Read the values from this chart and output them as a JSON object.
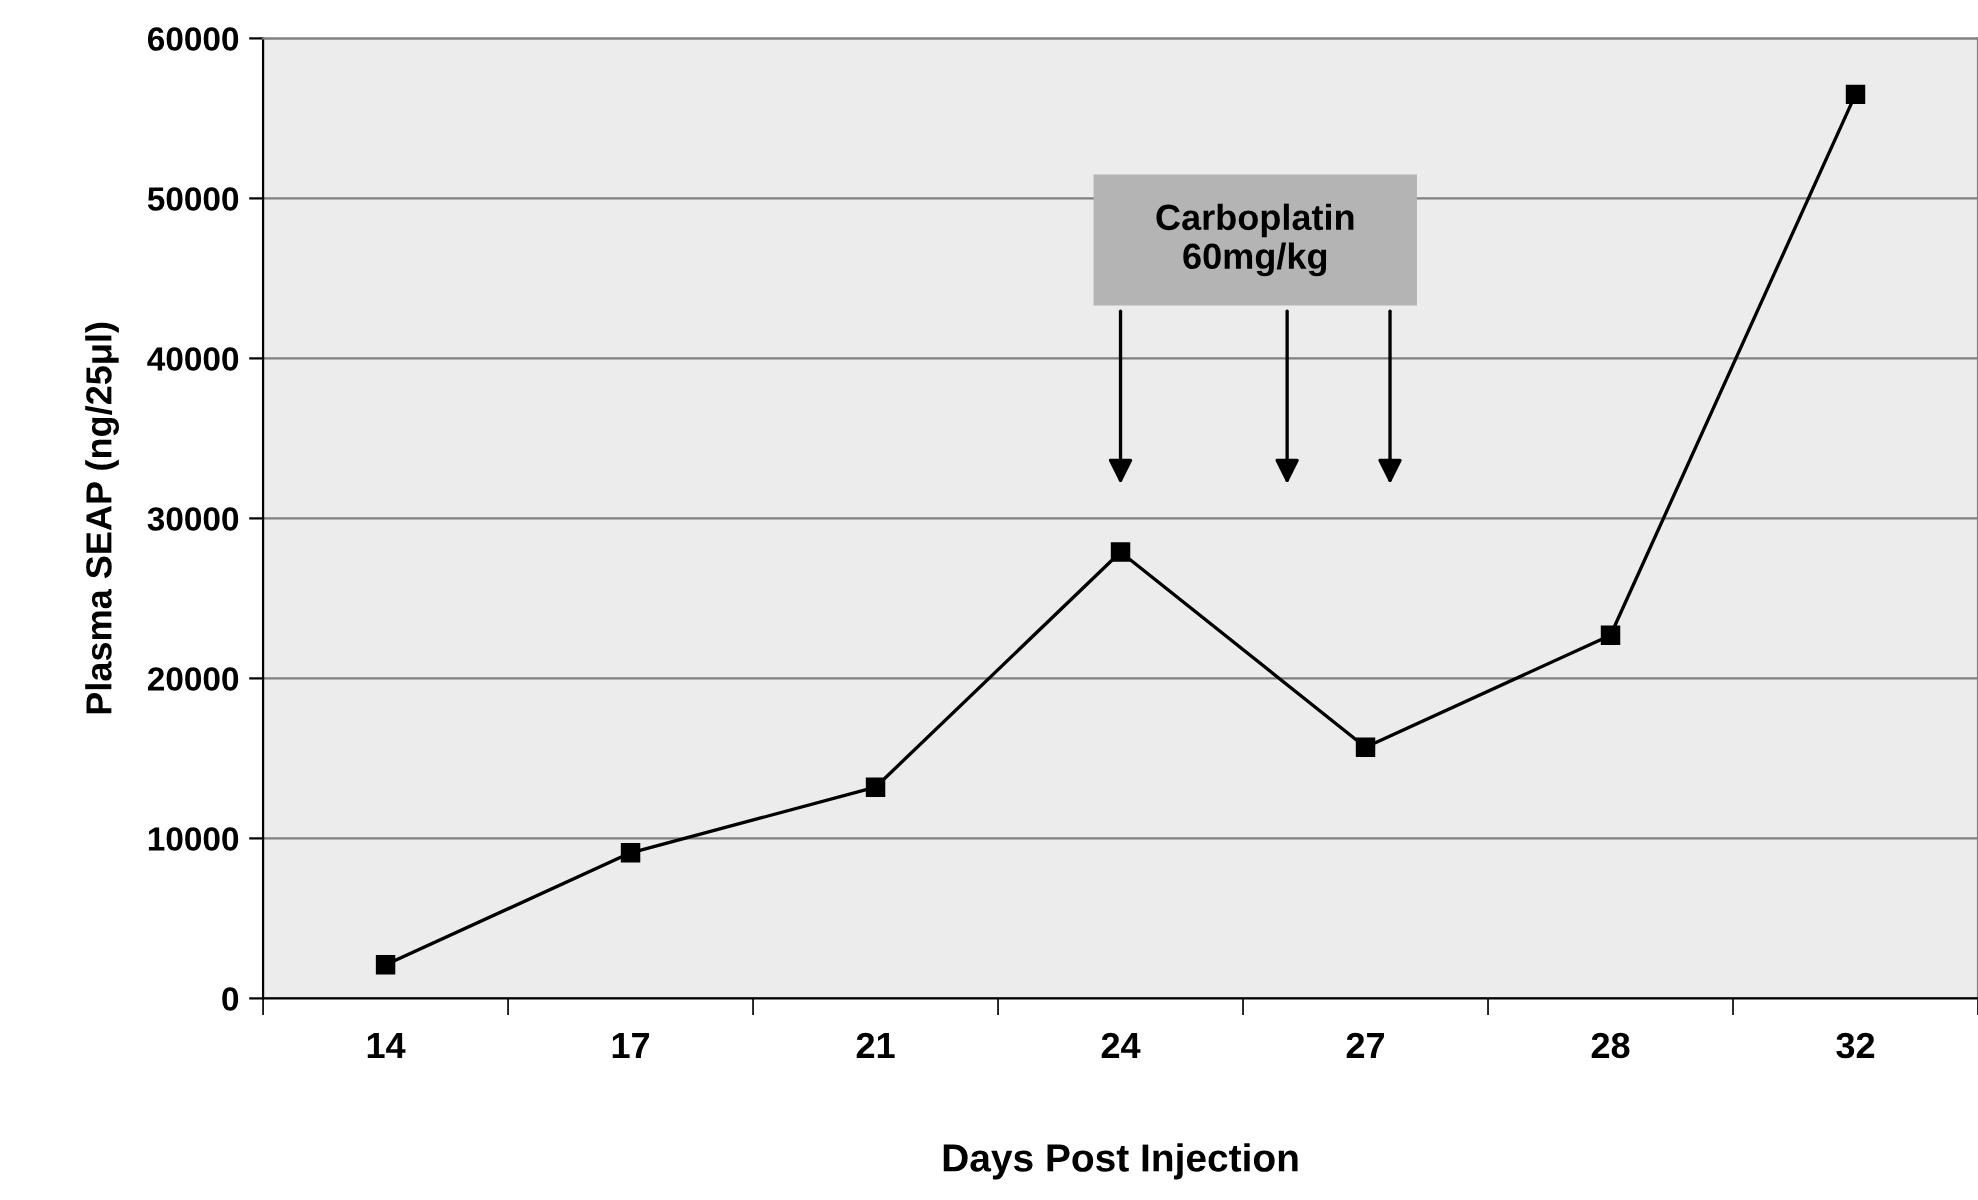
{
  "chart_data": {
    "type": "line",
    "xlabel": "Days Post Injection",
    "ylabel": "Plasma SEAP (ng/25μl)",
    "categories": [
      "14",
      "17",
      "21",
      "24",
      "27",
      "28",
      "32"
    ],
    "series": [
      {
        "color": "#000000",
        "values": [
          2100,
          9100,
          13200,
          27900,
          15700,
          22700,
          56500
        ]
      }
    ],
    "marker": "square",
    "line_style": "solid",
    "ylim": [
      0,
      60000
    ],
    "yticks": [
      0,
      10000,
      20000,
      30000,
      40000,
      50000,
      60000
    ],
    "grid": "y",
    "legend": false,
    "annotations": [
      "Carboplatin\n60mg/kg"
    ]
  }
}
